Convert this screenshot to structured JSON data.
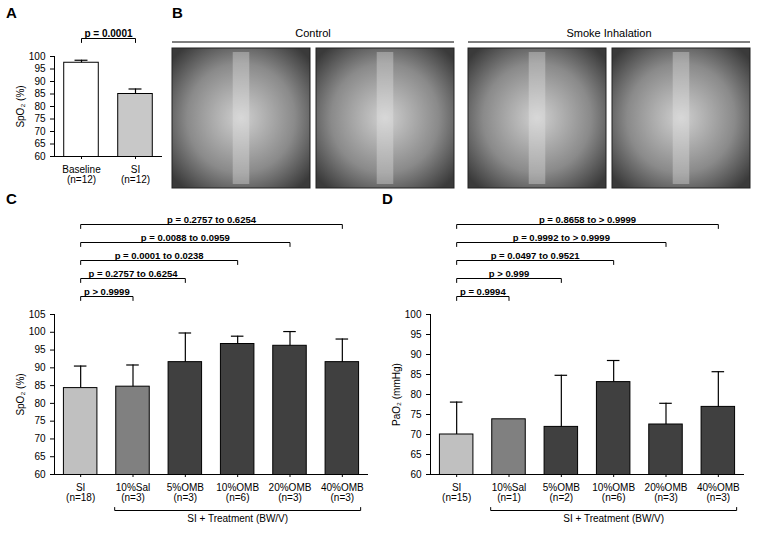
{
  "chart_data": [
    {
      "panel": "A",
      "type": "bar",
      "categories": [
        "Baseline (n=12)",
        "SI (n=12)"
      ],
      "values": [
        97.5,
        85.0
      ],
      "errors": [
        1.0,
        2.0
      ],
      "colors": [
        "#ffffff",
        "#c8c8c8"
      ],
      "ylabel": "SpO₂ (%)",
      "ylim": [
        60,
        100
      ],
      "yticks": [
        60,
        65,
        70,
        75,
        80,
        85,
        90,
        95,
        100
      ],
      "brackets": [
        {
          "from": "Baseline (n=12)",
          "to": "SI (n=12)",
          "text": "p = 0.0001"
        }
      ]
    },
    {
      "panel": "B",
      "type": "image",
      "groups": [
        {
          "label": "Control",
          "images": 2
        },
        {
          "label": "Smoke Inhalation",
          "images": 2
        }
      ]
    },
    {
      "panel": "C",
      "type": "bar",
      "categories": [
        "SI (n=18)",
        "10%Sal (n=3)",
        "5%OMB (n=3)",
        "10%OMB (n=6)",
        "20%OMB (n=3)",
        "40%OMB (n=3)"
      ],
      "values": [
        84.3,
        84.7,
        91.6,
        96.7,
        96.2,
        91.6
      ],
      "errors": [
        6.2,
        6.1,
        8.2,
        2.2,
        4.0,
        6.5
      ],
      "colors": [
        "#c0c0c0",
        "#808080",
        "#404040",
        "#404040",
        "#404040",
        "#404040"
      ],
      "ylabel": "SpO₂ (%)",
      "ylim": [
        60,
        105
      ],
      "yticks": [
        60,
        65,
        70,
        75,
        80,
        85,
        90,
        95,
        100,
        105
      ],
      "brackets": [
        {
          "from": "SI (n=18)",
          "to": "10%Sal (n=3)",
          "text": "p > 0.9999"
        },
        {
          "from": "SI (n=18)",
          "to": "5%OMB (n=3)",
          "text": "p = 0.2757 to 0.6254"
        },
        {
          "from": "SI (n=18)",
          "to": "10%OMB (n=6)",
          "text": "p = 0.0001 to 0.0238"
        },
        {
          "from": "SI (n=18)",
          "to": "20%OMB (n=3)",
          "text": "p = 0.0088 to 0.0959"
        },
        {
          "from": "SI (n=18)",
          "to": "40%OMB (n=3)",
          "text": "p = 0.2757 to 0.6254"
        }
      ],
      "group": {
        "from": "10%Sal (n=3)",
        "to": "40%OMB (n=3)",
        "text": "SI + Treatment (BW/V)"
      }
    },
    {
      "panel": "D",
      "type": "bar",
      "categories": [
        "SI (n=15)",
        "10%Sal (n=1)",
        "5%OMB (n=2)",
        "10%OMB (n=6)",
        "20%OMB (n=3)",
        "40%OMB (n=3)"
      ],
      "values": [
        70.0,
        73.8,
        71.9,
        83.1,
        72.5,
        76.9
      ],
      "errors": [
        8.1,
        null,
        12.9,
        5.4,
        5.3,
        8.8
      ],
      "colors": [
        "#c0c0c0",
        "#808080",
        "#404040",
        "#404040",
        "#404040",
        "#404040"
      ],
      "ylabel": "PaO₂ (mmHg)",
      "ylim": [
        60,
        100
      ],
      "yticks": [
        60,
        65,
        70,
        75,
        80,
        85,
        90,
        95,
        100
      ],
      "brackets": [
        {
          "from": "SI (n=15)",
          "to": "10%Sal (n=1)",
          "text": "p = 0.9994"
        },
        {
          "from": "SI (n=15)",
          "to": "5%OMB (n=2)",
          "text": "p > 0.999"
        },
        {
          "from": "SI (n=15)",
          "to": "10%OMB (n=6)",
          "text": "p = 0.0497 to 0.9521"
        },
        {
          "from": "SI (n=15)",
          "to": "20%OMB (n=3)",
          "text": "p = 0.9992 to > 0.9999"
        },
        {
          "from": "SI (n=15)",
          "to": "40%OMB (n=3)",
          "text": "p = 0.8658 to > 0.9999"
        }
      ],
      "group": {
        "from": "10%Sal (n=1)",
        "to": "40%OMB (n=3)",
        "text": "SI + Treatment (BW/V)"
      }
    }
  ]
}
